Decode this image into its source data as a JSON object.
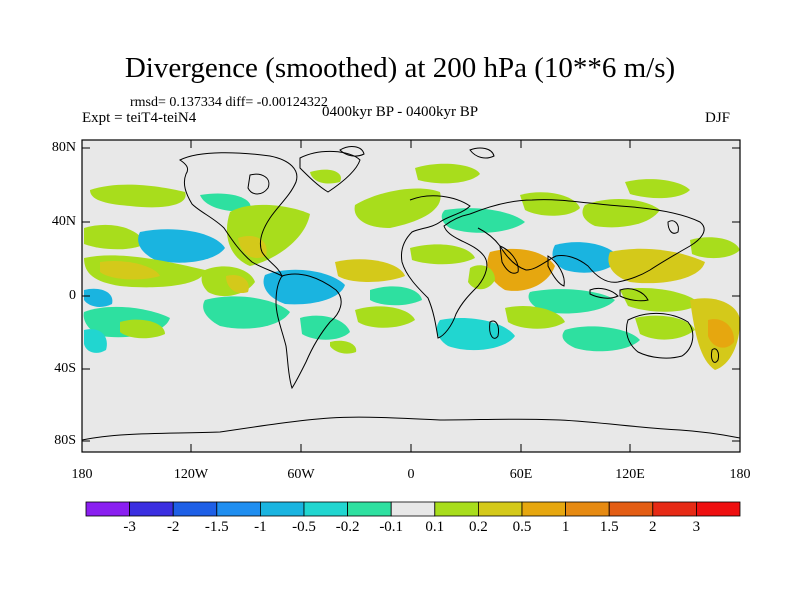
{
  "title": "Divergence (smoothed) at 200 hPa (10**6 m/s)",
  "stats": "rmsd= 0.137334 diff= -0.00124322",
  "experiment": "Expt = teiT4-teiN4",
  "period": "0400kyr BP - 0400kyr BP",
  "season": "DJF",
  "axes": {
    "lat_labels": [
      "80N",
      "40N",
      "0",
      "40S",
      "80S"
    ],
    "lon_labels": [
      "180",
      "120W",
      "60W",
      "0",
      "60E",
      "120E",
      "180"
    ]
  },
  "colorbar": {
    "labels": [
      "-3",
      "-2",
      "-1.5",
      "-1",
      "-0.5",
      "-0.2",
      "-0.1",
      "0.1",
      "0.2",
      "0.5",
      "1",
      "1.5",
      "2",
      "3"
    ],
    "colors": [
      "#8a1ff0",
      "#3b2ee0",
      "#1e5fe6",
      "#1f8ef0",
      "#1ab4e0",
      "#21d6d0",
      "#2ee0a0",
      "#e8e8e8",
      "#a8dd1c",
      "#d4c91a",
      "#e6a70f",
      "#e68a12",
      "#e35d14",
      "#e62a15",
      "#ee0f10"
    ]
  },
  "field_colors": {
    "background": "#e8e8e8",
    "pos_weak": "#a8dd1c",
    "pos_mid": "#d4c91a",
    "pos_strong": "#e6a70f",
    "neg_weak": "#2ee0a0",
    "neg_mid": "#21d6d0",
    "neg_strong": "#1ab4e0"
  }
}
